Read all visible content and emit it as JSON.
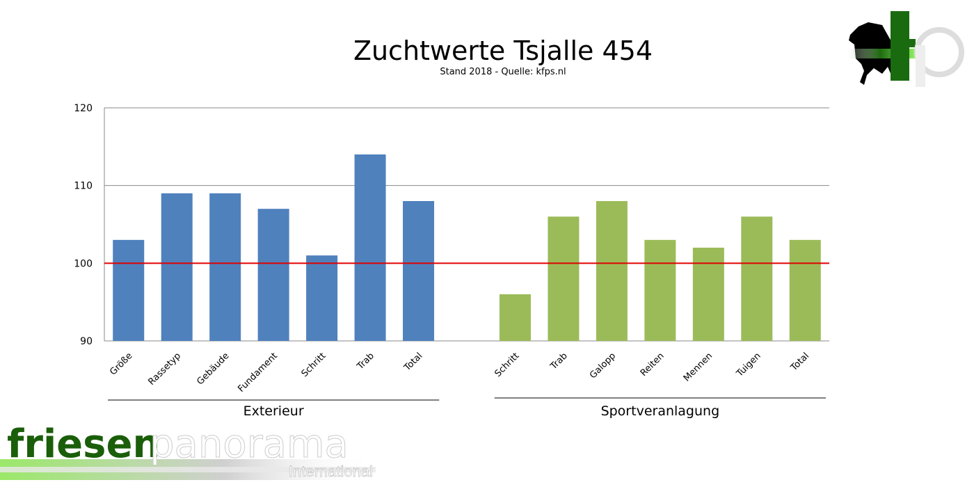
{
  "chart_data": {
    "type": "bar",
    "title": "Zuchtwerte Tsjalle 454",
    "subtitle": "Stand 2018 - Quelle: kfps.nl",
    "ylim": [
      90,
      120
    ],
    "yticks": [
      90,
      100,
      110,
      120
    ],
    "reference_line": {
      "value": 100,
      "color": "#e00000"
    },
    "grid": true,
    "groups": [
      {
        "name": "Exterieur",
        "color": "#4f81bd",
        "categories": [
          "Größe",
          "Rassetyp",
          "Gebäude",
          "Fundament",
          "Schritt",
          "Trab",
          "Total"
        ],
        "values": [
          103,
          109,
          109,
          107,
          101,
          114,
          108
        ]
      },
      {
        "name": "Sportveranlagung",
        "color": "#9bbb59",
        "categories": [
          "Schritt",
          "Trab",
          "Galopp",
          "Reiten",
          "Mennen",
          "Tuigen",
          "Total"
        ],
        "values": [
          96,
          106,
          108,
          103,
          102,
          106,
          103
        ]
      }
    ]
  },
  "logos": {
    "bottom_left": {
      "text_dark": "friesen",
      "text_light": "panorama",
      "tagline": "International"
    },
    "top_right": {
      "text": "fp"
    }
  }
}
